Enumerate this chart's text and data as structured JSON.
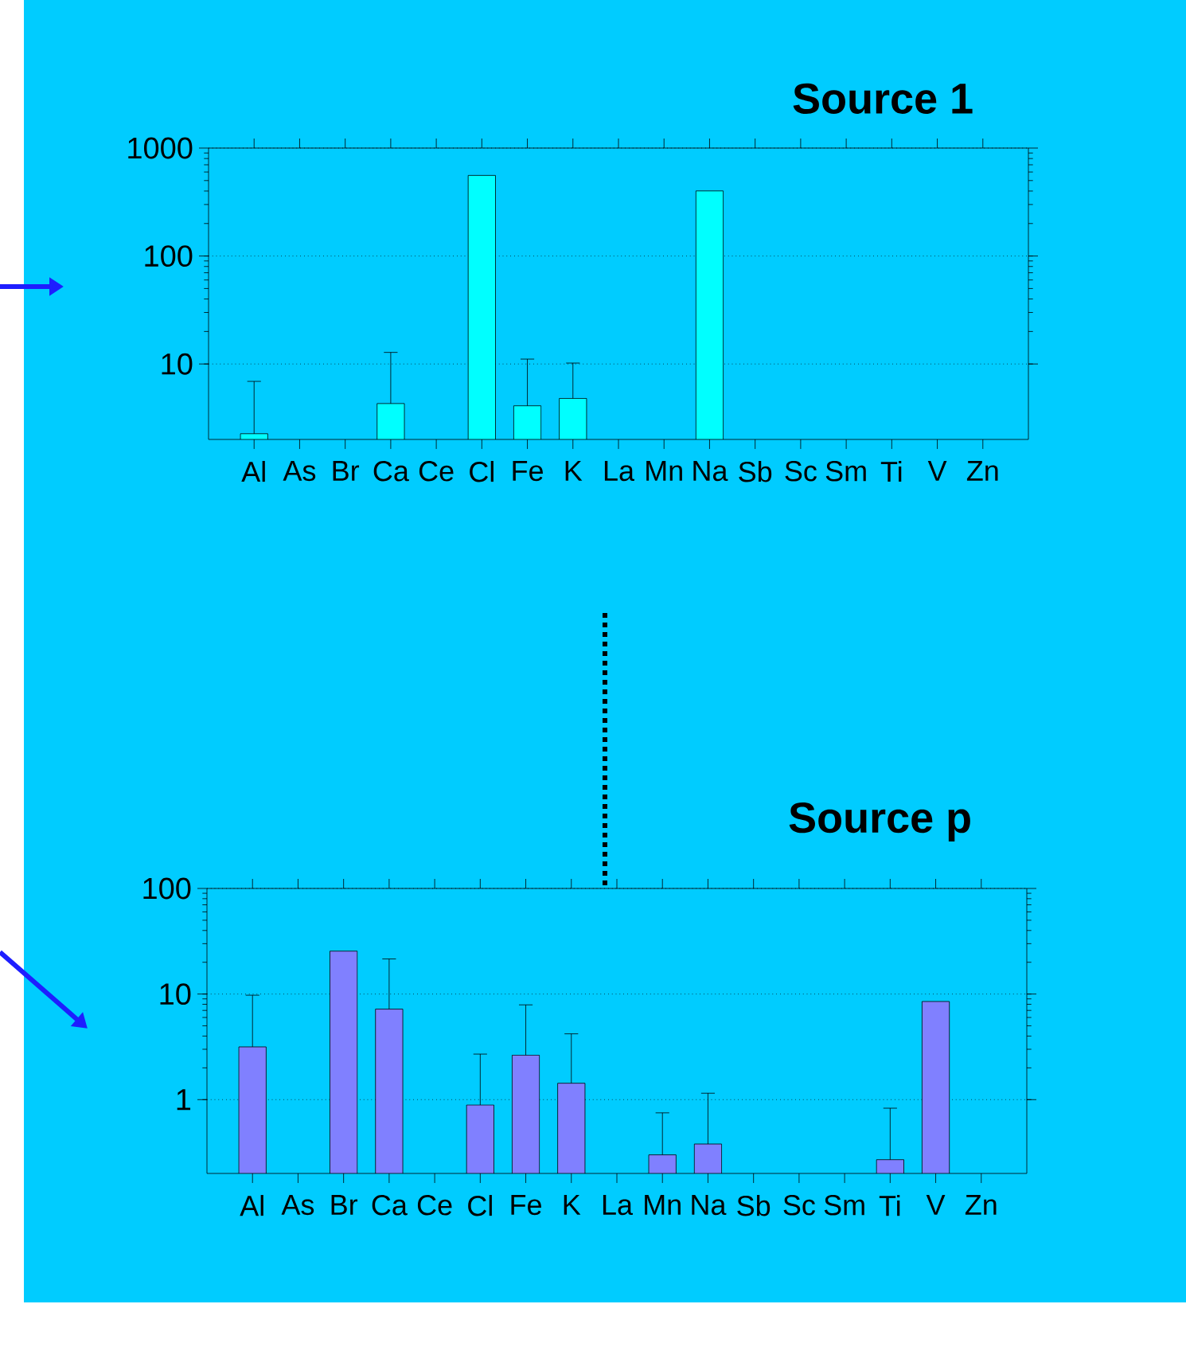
{
  "chart_data": [
    {
      "type": "bar",
      "title": "Source 1",
      "categories": [
        "Al",
        "As",
        "Br",
        "Ca",
        "Ce",
        "Cl",
        "Fe",
        "K",
        "La",
        "Mn",
        "Na",
        "Sb",
        "Sc",
        "Sm",
        "Ti",
        "V",
        "Zn"
      ],
      "values": [
        2.26,
        null,
        null,
        4.3,
        null,
        558,
        4.1,
        4.8,
        null,
        null,
        401,
        null,
        null,
        null,
        null,
        null,
        null
      ],
      "errors": [
        [
          2.26,
          6.9
        ],
        null,
        null,
        [
          4.3,
          12.8
        ],
        null,
        null,
        [
          4.1,
          11.1
        ],
        [
          4.8,
          10.2
        ],
        null,
        null,
        null,
        null,
        null,
        null,
        null,
        null,
        null
      ],
      "color": "#00ffff",
      "ylim": [
        2,
        1000
      ],
      "yticks": [
        10,
        100,
        1000
      ],
      "log": "y",
      "grid": "y"
    },
    {
      "type": "bar",
      "title": "Source p",
      "categories": [
        "Al",
        "As",
        "Br",
        "Ca",
        "Ce",
        "Cl",
        "Fe",
        "K",
        "La",
        "Mn",
        "Na",
        "Sb",
        "Sc",
        "Sm",
        "Ti",
        "V",
        "Zn"
      ],
      "values": [
        3.16,
        null,
        25.5,
        7.2,
        null,
        0.89,
        2.64,
        1.43,
        null,
        0.3,
        0.38,
        null,
        null,
        null,
        0.27,
        8.5,
        null
      ],
      "errors": [
        [
          3.16,
          9.75
        ],
        null,
        null,
        [
          7.2,
          21.5
        ],
        null,
        [
          0.89,
          2.7
        ],
        [
          2.64,
          7.9
        ],
        [
          1.43,
          4.2
        ],
        null,
        [
          0.3,
          0.75
        ],
        [
          0.38,
          1.15
        ],
        null,
        null,
        null,
        [
          0.27,
          0.83
        ],
        null,
        null
      ],
      "color": "#8080ff",
      "ylim": [
        0.2,
        100
      ],
      "yticks": [
        1,
        10,
        100
      ],
      "log": "y",
      "grid": "y"
    }
  ]
}
